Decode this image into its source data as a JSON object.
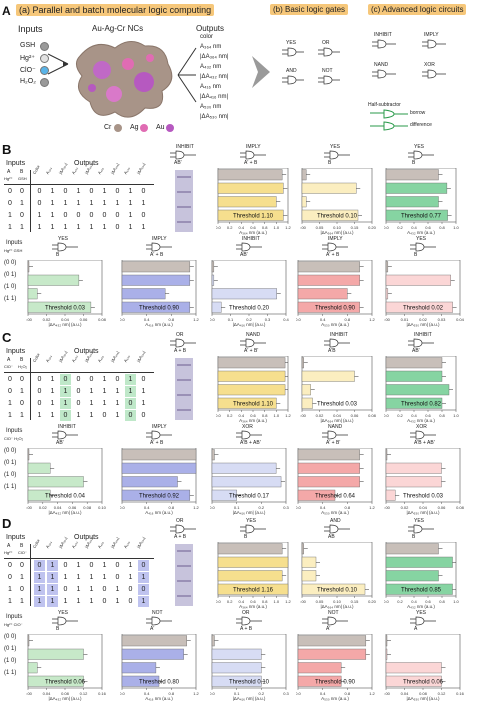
{
  "panel_a": {
    "label_a": "A",
    "header_a": "(a) Parallel and batch molecular logic computing",
    "header_b": "(b) Basic logic gates",
    "header_c": "(c) Advanced logic circuits",
    "inputs_title": "Inputs",
    "nc_title": "Au-Ag-Cr NCs",
    "outputs_title": "Outputs",
    "inputs": [
      "GSH",
      "Hg²⁺",
      "ClO⁻",
      "H₂O₂"
    ],
    "outputs": [
      "color",
      "A₃₆₄ nm",
      "|ΔA₃₆₄ nm|",
      "A₄₃₂ nm",
      "|ΔA₄₃₂ nm|",
      "A₄₁₆ nm",
      "|ΔA₄₁₆ nm|",
      "A₅₃₀ nm",
      "|ΔA₅₃₀ nm|"
    ],
    "legend": [
      "Cr",
      "Ag",
      "Au"
    ],
    "basic_gates": [
      "YES",
      "OR",
      "AND",
      "NOT"
    ],
    "advanced_gates": [
      "INHIBIT",
      "IMPLY",
      "NAND",
      "XOR"
    ],
    "half_sub_label": "Half-subtractor",
    "half_sub_outputs": [
      "borrow",
      "difference"
    ]
  },
  "table_rows": [
    [
      "0",
      "0"
    ],
    [
      "0",
      "1"
    ],
    [
      "1",
      "0"
    ],
    [
      "1",
      "1"
    ]
  ],
  "panels": [
    {
      "label": "B",
      "inputs_title": "Inputs",
      "outputs_title": "Outputs",
      "col_a": "A",
      "col_b": "B",
      "in_a": "Hg²⁺",
      "in_b": "GSH",
      "out_headers": [
        "Color",
        "A₃₆₄",
        "|ΔA₃₆₄|",
        "A₄₃₂",
        "|ΔA₄₃₂|",
        "A₄₁₆",
        "|ΔA₄₁₆|",
        "A₅₃₀",
        "|ΔA₅₃₀|"
      ],
      "values": [
        [
          "0",
          "1",
          "0",
          "1",
          "0",
          "1",
          "0",
          "1",
          "0"
        ],
        [
          "0",
          "1",
          "1",
          "1",
          "1",
          "1",
          "1",
          "1",
          "1"
        ],
        [
          "1",
          "1",
          "0",
          "0",
          "0",
          "0",
          "0",
          "1",
          "0"
        ],
        [
          "1",
          "1",
          "1",
          "1",
          "1",
          "1",
          "0",
          "1",
          "1"
        ]
      ],
      "row1": [
        {
          "gate": "INHIBIT",
          "expr": "AB'",
          "out": "color",
          "type": "strip"
        },
        {
          "gate": "IMPLY",
          "expr": "A' + B",
          "color": "#f6df8e",
          "ticks": [
            "0.0",
            "0.2",
            "0.4",
            "0.6",
            "0.8",
            "1.0",
            "1.2"
          ],
          "values": [
            1.1,
            1.12,
            1.0,
            1.12
          ],
          "threshold": "Threshold 1.10",
          "axis": "A₃₆₄ nm (a.u.)"
        },
        {
          "gate": "YES",
          "expr": "B",
          "color": "#fbeec0",
          "ticks": [
            "0.00",
            "0.05",
            "0.10",
            "0.15",
            "0.20"
          ],
          "values": [
            0.012,
            0.155,
            0.012,
            0.16
          ],
          "threshold": "Threshold 0.10",
          "axis": "|ΔA₃₆₄ nm| (a.u.)"
        },
        {
          "gate": "YES",
          "expr": "B",
          "color": "#86d4a2",
          "ticks": [
            "0.0",
            "0.2",
            "0.4",
            "0.6",
            "0.8",
            "1.0"
          ],
          "values": [
            0.75,
            0.87,
            0.75,
            0.88
          ],
          "threshold": "Threshold 0.77",
          "axis": "A₄₃₂ nm (a.u.)"
        }
      ],
      "row2": [
        {
          "gate": "YES",
          "expr": "B",
          "color": "#c7e9c9",
          "ticks": [
            "0.00",
            "0.02",
            "0.04",
            "0.06",
            "0.08"
          ],
          "values": [
            0.001,
            0.055,
            0.01,
            0.068
          ],
          "threshold": "Threshold 0.03",
          "axis": "|ΔA₄₃₂ nm| (a.u.)"
        },
        {
          "gate": "IMPLY",
          "expr": "A' + B",
          "color": "#aab0e8",
          "ticks": [
            "0.0",
            "0.4",
            "0.8",
            "1.2"
          ],
          "values": [
            1.1,
            1.1,
            0.7,
            1.1
          ],
          "threshold": "Threshold 0.90",
          "axis": "A₄₁₆ nm (a.u.)"
        },
        {
          "gate": "INHIBIT",
          "expr": "AB'",
          "color": "#d7dcf4",
          "ticks": [
            "0.0",
            "0.1",
            "0.2",
            "0.3",
            "0.4"
          ],
          "values": [
            0.01,
            0.01,
            0.35,
            0.05
          ],
          "threshold": "Threshold 0.20",
          "axis": "|ΔA₄₁₆ nm| (a.u.)"
        },
        {
          "gate": "IMPLY",
          "expr": "A' + B",
          "color": "#f4a8a8",
          "ticks": [
            "0.0",
            "0.4",
            "0.8",
            "1.2"
          ],
          "values": [
            1.0,
            1.0,
            0.8,
            1.0
          ],
          "threshold": "Threshold 0.90",
          "axis": "A₅₃₀ nm (a.u.)"
        },
        {
          "gate": "YES",
          "expr": "B",
          "color": "#fbd6d6",
          "ticks": [
            "0.00",
            "0.01",
            "0.02",
            "0.03",
            "0.04"
          ],
          "values": [
            0.001,
            0.035,
            0.001,
            0.036
          ],
          "threshold": "Threshold 0.02",
          "axis": "|ΔA₅₃₀ nm| (a.u.)"
        }
      ]
    },
    {
      "label": "C",
      "inputs_title": "Inputs",
      "outputs_title": "Outputs",
      "col_a": "A",
      "col_b": "B",
      "in_a": "ClO⁻",
      "in_b": "H₂O₂",
      "out_headers": [
        "Color",
        "A₃₆₄",
        "|ΔA₃₆₄|",
        "A₄₃₂",
        "|ΔA₄₃₂|",
        "A₄₁₆",
        "|ΔA₄₁₆|",
        "A₅₃₀",
        "|ΔA₅₃₀|"
      ],
      "highlight_cols": [
        3,
        8
      ],
      "highlight_color": "green",
      "values": [
        [
          "0",
          "1",
          "0",
          "0",
          "0",
          "1",
          "0",
          "1",
          "0"
        ],
        [
          "0",
          "1",
          "1",
          "0",
          "1",
          "1",
          "1",
          "1",
          "1"
        ],
        [
          "0",
          "1",
          "1",
          "0",
          "1",
          "1",
          "1",
          "0",
          "1"
        ],
        [
          "1",
          "1",
          "0",
          "1",
          "1",
          "0",
          "1",
          "0",
          "0"
        ]
      ],
      "row1": [
        {
          "gate": "OR",
          "expr": "A + B",
          "out": "color",
          "type": "strip"
        },
        {
          "gate": "NAND",
          "expr": "A' + B'",
          "color": "#f6df8e",
          "ticks": [
            "0.0",
            "0.2",
            "0.4",
            "0.6",
            "0.8",
            "1.0",
            "1.2"
          ],
          "values": [
            1.15,
            1.15,
            1.15,
            1.0
          ],
          "threshold": "Threshold 1.10",
          "axis": "A₃₆₄ nm (a.u.)"
        },
        {
          "gate": "INHIBIT",
          "expr": "A'B",
          "color": "#fbeec0",
          "ticks": [
            "0.00",
            "0.02",
            "0.04",
            "0.06",
            "0.08"
          ],
          "values": [
            0.002,
            0.06,
            0.01,
            0.012
          ],
          "threshold": "Threshold 0.03",
          "axis": "|ΔA₃₆₄ nm| (a.u.)"
        },
        {
          "gate": "INHIBIT",
          "expr": "AB'",
          "color": "#86d4a2",
          "ticks": [
            "0.0",
            "0.2",
            "0.4",
            "0.6",
            "0.8",
            "1.0"
          ],
          "values": [
            0.8,
            0.8,
            0.9,
            0.8
          ],
          "threshold": "Threshold 0.82",
          "axis": "A₄₃₂ nm (a.u.)"
        }
      ],
      "row2": [
        {
          "gate": "INHIBIT",
          "expr": "AB'",
          "color": "#c7e9c9",
          "ticks": [
            "0.00",
            "0.02",
            "0.04",
            "0.06",
            "0.08",
            "0.10"
          ],
          "values": [
            0.001,
            0.03,
            0.075,
            0.03
          ],
          "threshold": "Threshold 0.04",
          "axis": "|ΔA₄₃₂ nm| (a.u.)"
        },
        {
          "gate": "IMPLY",
          "expr": "A' + B",
          "color": "#aab0e8",
          "ticks": [
            "0.0",
            "0.4",
            "0.8",
            "1.2"
          ],
          "values": [
            1.2,
            1.2,
            0.9,
            1.1
          ],
          "threshold": "Threshold 0.92",
          "axis": "A₄₁₆ nm (a.u.)"
        },
        {
          "gate": "XOR",
          "expr": "A'B + AB'",
          "color": "#d7dcf4",
          "ticks": [
            "0.0",
            "0.1",
            "0.2",
            "0.3"
          ],
          "values": [
            0.01,
            0.26,
            0.28,
            0.1
          ],
          "threshold": "Threshold 0.17",
          "axis": "|ΔA₄₁₆ nm| (a.u.)"
        },
        {
          "gate": "NAND",
          "expr": "A' + B'",
          "color": "#f4a8a8",
          "ticks": [
            "0.0",
            "0.4",
            "0.8",
            "1.2"
          ],
          "values": [
            1.0,
            1.0,
            1.0,
            0.6
          ],
          "threshold": "Threshold 0.64",
          "axis": "A₅₃₀ nm (a.u.)"
        },
        {
          "gate": "XOR",
          "expr": "A'B + AB'",
          "color": "#fbd6d6",
          "ticks": [
            "0.00",
            "0.02",
            "0.04",
            "0.06",
            "0.08"
          ],
          "values": [
            0.001,
            0.06,
            0.06,
            0.01
          ],
          "threshold": "Threshold 0.03",
          "axis": "|ΔA₅₃₀ nm| (a.u.)"
        }
      ]
    },
    {
      "label": "D",
      "inputs_title": "Inputs",
      "outputs_title": "Outputs",
      "col_a": "A",
      "col_b": "B",
      "in_a": "Hg²⁺",
      "in_b": "ClO⁻",
      "out_headers": [
        "Color",
        "A₃₆₄",
        "|ΔA₃₆₄|",
        "A₄₃₂",
        "|ΔA₄₃₂|",
        "A₄₁₆",
        "|ΔA₄₁₆|",
        "A₅₃₀",
        "|ΔA₅₃₀|"
      ],
      "highlight_cols": [
        1,
        2,
        9
      ],
      "highlight_color": "blue",
      "values": [
        [
          "0",
          "1",
          "0",
          "1",
          "0",
          "1",
          "0",
          "1",
          "0"
        ],
        [
          "1",
          "1",
          "1",
          "1",
          "1",
          "1",
          "0",
          "1",
          "1"
        ],
        [
          "1",
          "1",
          "0",
          "1",
          "1",
          "0",
          "1",
          "0",
          "0"
        ],
        [
          "1",
          "1",
          "1",
          "1",
          "1",
          "0",
          "1",
          "0",
          "1"
        ]
      ],
      "row1": [
        {
          "gate": "OR",
          "expr": "A + B",
          "out": "color",
          "type": "strip"
        },
        {
          "gate": "YES",
          "expr": "B",
          "color": "#f6df8e",
          "ticks": [
            "0.0",
            "0.2",
            "0.4",
            "0.6",
            "0.8",
            "1.0",
            "1.2"
          ],
          "values": [
            1.1,
            1.2,
            1.1,
            1.2
          ],
          "threshold": "Threshold 1.16",
          "axis": "A₃₆₄ nm (a.u.)"
        },
        {
          "gate": "AND",
          "expr": "AB",
          "color": "#fbeec0",
          "ticks": [
            "0.00",
            "0.05",
            "0.10",
            "0.15",
            "0.20"
          ],
          "values": [
            0.005,
            0.04,
            0.04,
            0.18
          ],
          "threshold": "Threshold 0.10",
          "axis": "|ΔA₃₆₄ nm| (a.u.)"
        },
        {
          "gate": "YES",
          "expr": "B",
          "color": "#86d4a2",
          "ticks": [
            "0.0",
            "0.2",
            "0.4",
            "0.6",
            "0.8",
            "1.0"
          ],
          "values": [
            0.75,
            0.95,
            0.75,
            0.95
          ],
          "threshold": "Threshold 0.85",
          "axis": "A₄₃₂ nm (a.u.)"
        }
      ],
      "row2": [
        {
          "gate": "YES",
          "expr": "B",
          "color": "#c7e9c9",
          "ticks": [
            "0.00",
            "0.04",
            "0.08",
            "0.12",
            "0.16"
          ],
          "values": [
            0.001,
            0.12,
            0.02,
            0.12
          ],
          "threshold": "Threshold 0.06",
          "axis": "|ΔA₄₃₂ nm| (a.u.)"
        },
        {
          "gate": "NOT",
          "expr": "A'",
          "color": "#aab0e8",
          "ticks": [
            "0.0",
            "0.4",
            "0.8",
            "1.2"
          ],
          "values": [
            1.05,
            1.0,
            0.55,
            0.6
          ],
          "threshold": "Threshold 0.80",
          "axis": "A₄₁₆ nm (a.u.)"
        },
        {
          "gate": "OR",
          "expr": "A + B",
          "color": "#d7dcf4",
          "ticks": [
            "0.0",
            "0.1",
            "0.2",
            "0.3"
          ],
          "values": [
            0.01,
            0.2,
            0.2,
            0.2
          ],
          "threshold": "Threshold 0.10",
          "axis": "|ΔA₄₁₆ nm| (a.u.)"
        },
        {
          "gate": "NOT",
          "expr": "A'",
          "color": "#f4a8a8",
          "ticks": [
            "0.0",
            "0.4",
            "0.8",
            "1.2"
          ],
          "values": [
            1.1,
            1.1,
            0.7,
            0.7
          ],
          "threshold": "Threshold 0.90",
          "axis": "A₅₃₀ nm (a.u.)"
        },
        {
          "gate": "YES",
          "expr": "A",
          "color": "#fbd6d6",
          "ticks": [
            "0.00",
            "0.04",
            "0.08",
            "0.12",
            "0.16"
          ],
          "values": [
            0.001,
            0.001,
            0.12,
            0.12
          ],
          "threshold": "Threshold 0.06",
          "axis": "|ΔA₅₃₀ nm| (a.u.)"
        }
      ]
    }
  ],
  "grey_color": "#c8bfb9",
  "header_color": "#f6c77a"
}
